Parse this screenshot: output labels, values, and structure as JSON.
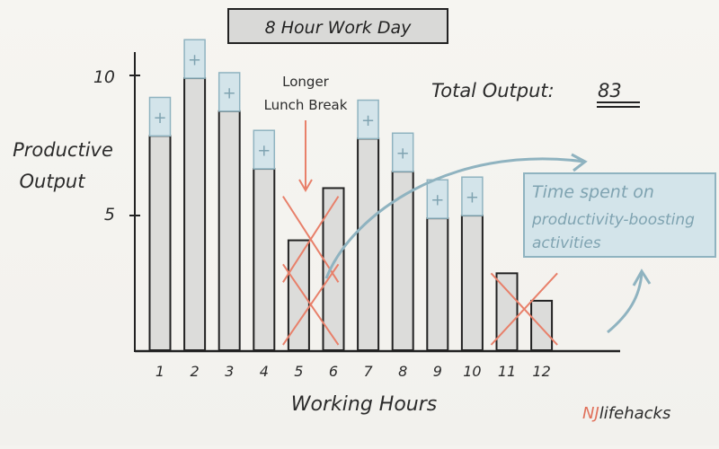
{
  "title": "8 Hour Work Day",
  "total": {
    "label": "Total Output:",
    "value": "83"
  },
  "annotation_break": {
    "line1": "Longer",
    "line2": "Lunch Break"
  },
  "callout": {
    "line1": "Time spent on",
    "line2": "productivity-boosting",
    "line3": "activities"
  },
  "brand": {
    "nj": "NJ",
    "rest": "lifehacks"
  },
  "colors": {
    "bar_fill": "#dcdcda",
    "boost_fill": "#d3e4ea",
    "boost_stroke": "#8fb3c0",
    "cross": "#e8806a",
    "arrow_blue": "#8fb3c0",
    "axis": "#222222",
    "brand_nj": "#e0705a"
  },
  "chart_data": {
    "type": "bar",
    "title": "8 Hour Work Day",
    "xlabel": "Working Hours",
    "ylabel": "Productive Output",
    "ylim": [
      0,
      10
    ],
    "yticks": [
      5,
      10
    ],
    "categories": [
      "1",
      "2",
      "3",
      "4",
      "5",
      "6",
      "7",
      "8",
      "9",
      "10",
      "11",
      "12"
    ],
    "series": [
      {
        "values": [
          7.8,
          9.9,
          8.7,
          6.6,
          4.0,
          5.9,
          7.7,
          6.5,
          4.8,
          4.9,
          2.8,
          1.8
        ]
      },
      {
        "values": [
          1.4,
          1.4,
          1.4,
          1.4,
          0,
          0,
          1.4,
          1.4,
          1.4,
          1.4,
          0,
          0
        ]
      }
    ],
    "crossed_out": [
      "5",
      "6",
      "11",
      "12"
    ],
    "grid": false
  }
}
